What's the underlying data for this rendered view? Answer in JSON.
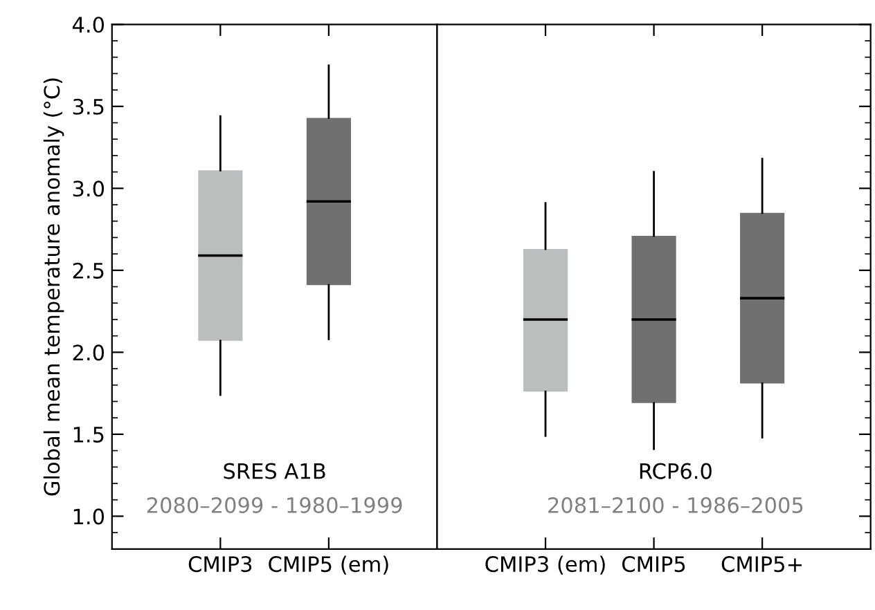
{
  "chart_data": [
    {
      "type": "box",
      "ylabel": "Global mean temperature anomaly (°C)",
      "categories": [
        "CMIP3",
        "CMIP5 (em)"
      ],
      "boxes": [
        {
          "low": 1.74,
          "q1": 2.07,
          "median": 2.59,
          "q3": 3.11,
          "high": 3.44
        },
        {
          "low": 2.08,
          "q1": 2.41,
          "median": 2.92,
          "q3": 3.43,
          "high": 3.75
        }
      ],
      "colors": [
        "#bbbebf",
        "#6e7170"
      ],
      "ylim": [
        0.8,
        4.0
      ],
      "yticks": [
        {
          "value": 0.9,
          "label": null
        },
        {
          "value": 1.0,
          "label": "1.0"
        },
        {
          "value": 1.1,
          "label": null
        },
        {
          "value": 1.2,
          "label": null
        },
        {
          "value": 1.3,
          "label": null
        },
        {
          "value": 1.4,
          "label": null
        },
        1.5,
        {
          "value": 1.6,
          "label": null
        },
        {
          "value": 1.7,
          "label": null
        },
        {
          "value": 1.8,
          "label": null
        },
        {
          "value": 1.9,
          "label": null
        },
        {
          "value": 2.0,
          "label": "2.0"
        },
        {
          "value": 2.1,
          "label": null
        },
        {
          "value": 2.2,
          "label": null
        },
        {
          "value": 2.3,
          "label": null
        },
        {
          "value": 2.4,
          "label": null
        },
        2.5,
        {
          "value": 2.6,
          "label": null
        },
        {
          "value": 2.7,
          "label": null
        },
        {
          "value": 2.8,
          "label": null
        },
        {
          "value": 2.9,
          "label": null
        },
        {
          "value": 3.0,
          "label": "3.0"
        },
        {
          "value": 3.1,
          "label": null
        },
        {
          "value": 3.2,
          "label": null
        },
        {
          "value": 3.3,
          "label": null
        },
        {
          "value": 3.4,
          "label": null
        },
        3.5,
        {
          "value": 3.6,
          "label": null
        },
        {
          "value": 3.7,
          "label": null
        },
        {
          "value": 3.8,
          "label": null
        },
        {
          "value": 3.9,
          "label": null
        },
        {
          "value": 4.0,
          "label": "4.0"
        }
      ],
      "annotations": [
        "SRES A1B",
        "2080–2099 - 1980–1999"
      ]
    },
    {
      "type": "box",
      "categories": [
        "CMIP3 (em)",
        "CMIP5",
        "CMIP5+"
      ],
      "boxes": [
        {
          "low": 1.49,
          "q1": 1.76,
          "median": 2.2,
          "q3": 2.63,
          "high": 2.91
        },
        {
          "low": 1.41,
          "q1": 1.69,
          "median": 2.2,
          "q3": 2.71,
          "high": 3.1
        },
        {
          "low": 1.48,
          "q1": 1.81,
          "median": 2.33,
          "q3": 2.85,
          "high": 3.18
        }
      ],
      "colors": [
        "#bbbebf",
        "#6e7170",
        "#6e7170"
      ],
      "ylim": [
        0.8,
        4.0
      ],
      "yticks": [
        {
          "value": 0.9,
          "label": null
        },
        1.0,
        {
          "value": 1.1,
          "label": null
        },
        {
          "value": 1.2,
          "label": null
        },
        {
          "value": 1.3,
          "label": null
        },
        {
          "value": 1.4,
          "label": null
        },
        1.5,
        {
          "value": 1.6,
          "label": null
        },
        {
          "value": 1.7,
          "label": null
        },
        {
          "value": 1.8,
          "label": null
        },
        {
          "value": 1.9,
          "label": null
        },
        2.0,
        {
          "value": 2.1,
          "label": null
        },
        {
          "value": 2.2,
          "label": null
        },
        {
          "value": 2.3,
          "label": null
        },
        {
          "value": 2.4,
          "label": null
        },
        2.5,
        {
          "value": 2.6,
          "label": null
        },
        {
          "value": 2.7,
          "label": null
        },
        {
          "value": 2.8,
          "label": null
        },
        {
          "value": 2.9,
          "label": null
        },
        3.0,
        {
          "value": 3.1,
          "label": null
        },
        {
          "value": 3.2,
          "label": null
        },
        {
          "value": 3.3,
          "label": null
        },
        {
          "value": 3.4,
          "label": null
        },
        3.5,
        {
          "value": 3.6,
          "label": null
        },
        {
          "value": 3.7,
          "label": null
        },
        {
          "value": 3.8,
          "label": null
        },
        {
          "value": 3.9,
          "label": null
        },
        4.0
      ],
      "tick_labels": "x",
      "annotations": [
        "RCP6.0",
        "2081–2100 - 1986–2005"
      ]
    }
  ]
}
